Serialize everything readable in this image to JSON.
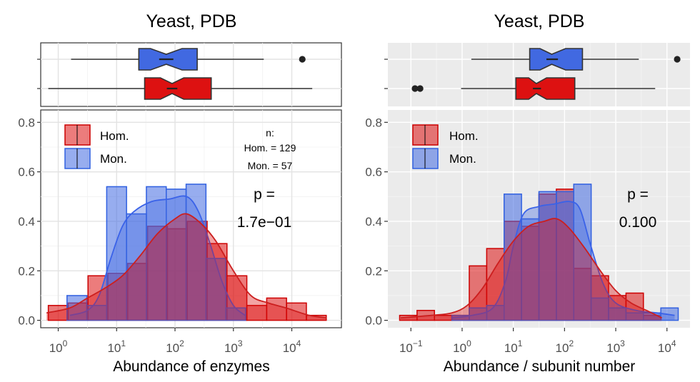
{
  "colors": {
    "hom": "#dd1111",
    "hom_edge": "#cc0000",
    "hom_curve": "#cc1f1f",
    "mon": "#4169e1",
    "mon_edge": "#3060e0",
    "mon_curve": "#3a62e8",
    "panel_bg_left": "#ffffff",
    "panel_bg_right": "#ebebeb",
    "grid_left": "#e3e3e3",
    "grid_right": "#ffffff",
    "axis_text": "#4d4d4d"
  },
  "chart_data": [
    {
      "type": "histogram",
      "title": "Yeast,  PDB",
      "xlabel": "Abundance of enzymes",
      "ylabel": "",
      "x_scale": "log10",
      "xlim": [
        -0.3,
        4.85
      ],
      "x_ticks": [
        {
          "exp": 0,
          "label_base": "10",
          "label_exp": "0"
        },
        {
          "exp": 1,
          "label_base": "10",
          "label_exp": "1"
        },
        {
          "exp": 2,
          "label_base": "10",
          "label_exp": "2"
        },
        {
          "exp": 3,
          "label_base": "10",
          "label_exp": "3"
        },
        {
          "exp": 4,
          "label_base": "10",
          "label_exp": "4"
        }
      ],
      "ylim": [
        -0.03,
        0.85
      ],
      "y_ticks": [
        {
          "v": 0,
          "label": "0.0"
        },
        {
          "v": 0.2,
          "label": "0.2"
        },
        {
          "v": 0.4,
          "label": "0.4"
        },
        {
          "v": 0.6,
          "label": "0.6"
        },
        {
          "v": 0.8,
          "label": "0.8"
        }
      ],
      "legend": {
        "position": "top-left",
        "labels": [
          "Hom.",
          "Mon."
        ]
      },
      "counts": {
        "title": "n:",
        "lines": [
          "Hom. = 129",
          "Mon. = 57"
        ]
      },
      "pvalue": {
        "label": "p =",
        "value": "1.7e−01"
      },
      "hom_bars": [
        {
          "x0": -0.17,
          "x1": 0.17,
          "y": 0.06
        },
        {
          "x0": 0.17,
          "x1": 0.51,
          "y": 0.07
        },
        {
          "x0": 0.51,
          "x1": 0.85,
          "y": 0.18
        },
        {
          "x0": 0.85,
          "x1": 1.19,
          "y": 0.19
        },
        {
          "x0": 1.19,
          "x1": 1.53,
          "y": 0.23
        },
        {
          "x0": 1.53,
          "x1": 1.87,
          "y": 0.38
        },
        {
          "x0": 1.87,
          "x1": 2.21,
          "y": 0.37
        },
        {
          "x0": 2.21,
          "x1": 2.55,
          "y": 0.4
        },
        {
          "x0": 2.55,
          "x1": 2.89,
          "y": 0.31
        },
        {
          "x0": 2.89,
          "x1": 3.23,
          "y": 0.18
        },
        {
          "x0": 3.23,
          "x1": 3.57,
          "y": 0.06
        },
        {
          "x0": 3.57,
          "x1": 3.91,
          "y": 0.09
        },
        {
          "x0": 3.91,
          "x1": 4.25,
          "y": 0.07
        },
        {
          "x0": 4.25,
          "x1": 4.59,
          "y": 0.02
        }
      ],
      "mon_bars": [
        {
          "x0": 0.15,
          "x1": 0.49,
          "y": 0.1
        },
        {
          "x0": 0.49,
          "x1": 0.83,
          "y": 0.06
        },
        {
          "x0": 0.83,
          "x1": 1.17,
          "y": 0.54
        },
        {
          "x0": 1.17,
          "x1": 1.51,
          "y": 0.43
        },
        {
          "x0": 1.51,
          "x1": 1.85,
          "y": 0.54
        },
        {
          "x0": 1.85,
          "x1": 2.19,
          "y": 0.53
        },
        {
          "x0": 2.19,
          "x1": 2.53,
          "y": 0.55
        },
        {
          "x0": 2.53,
          "x1": 2.87,
          "y": 0.25
        },
        {
          "x0": 2.87,
          "x1": 3.21,
          "y": 0.05
        }
      ],
      "hom_density": [
        [
          -0.2,
          0.03
        ],
        [
          0.2,
          0.05
        ],
        [
          0.5,
          0.09
        ],
        [
          0.8,
          0.13
        ],
        [
          1.1,
          0.18
        ],
        [
          1.4,
          0.26
        ],
        [
          1.7,
          0.35
        ],
        [
          2.0,
          0.41
        ],
        [
          2.2,
          0.43
        ],
        [
          2.45,
          0.39
        ],
        [
          2.7,
          0.32
        ],
        [
          3.0,
          0.2
        ],
        [
          3.3,
          0.1
        ],
        [
          3.6,
          0.07
        ],
        [
          3.9,
          0.05
        ],
        [
          4.3,
          0.02
        ],
        [
          4.6,
          0.01
        ]
      ],
      "mon_density": [
        [
          0.2,
          0.02
        ],
        [
          0.5,
          0.04
        ],
        [
          0.7,
          0.1
        ],
        [
          0.9,
          0.25
        ],
        [
          1.1,
          0.38
        ],
        [
          1.3,
          0.44
        ],
        [
          1.6,
          0.48
        ],
        [
          1.9,
          0.49
        ],
        [
          2.2,
          0.5
        ],
        [
          2.4,
          0.44
        ],
        [
          2.6,
          0.31
        ],
        [
          2.8,
          0.16
        ],
        [
          3.0,
          0.06
        ],
        [
          3.2,
          0.02
        ]
      ],
      "boxes": {
        "mon": {
          "whisker_lo": 0.22,
          "q1": 1.38,
          "median": 1.85,
          "q3": 2.38,
          "whisker_hi": 3.52,
          "notch_lo": 1.58,
          "notch_hi": 2.12,
          "outliers": [
            4.18
          ]
        },
        "hom": {
          "whisker_lo": -0.17,
          "q1": 1.48,
          "median": 1.95,
          "q3": 2.62,
          "whisker_hi": 4.35,
          "notch_lo": 1.75,
          "notch_hi": 2.15,
          "outliers": []
        }
      }
    },
    {
      "type": "histogram",
      "title": "Yeast,  PDB",
      "xlabel": "Abundance / subunit number",
      "ylabel": "",
      "x_scale": "log10",
      "xlim": [
        -1.45,
        4.45
      ],
      "x_ticks": [
        {
          "exp": -1,
          "label_base": "10",
          "label_exp": "−1"
        },
        {
          "exp": 0,
          "label_base": "10",
          "label_exp": "0"
        },
        {
          "exp": 1,
          "label_base": "10",
          "label_exp": "1"
        },
        {
          "exp": 2,
          "label_base": "10",
          "label_exp": "2"
        },
        {
          "exp": 3,
          "label_base": "10",
          "label_exp": "3"
        },
        {
          "exp": 4,
          "label_base": "10",
          "label_exp": "4"
        }
      ],
      "ylim": [
        -0.03,
        0.85
      ],
      "y_ticks": [
        {
          "v": 0,
          "label": "0.0"
        },
        {
          "v": 0.2,
          "label": "0.2"
        },
        {
          "v": 0.4,
          "label": "0.4"
        },
        {
          "v": 0.6,
          "label": "0.6"
        },
        {
          "v": 0.8,
          "label": "0.8"
        }
      ],
      "legend": {
        "position": "top-left",
        "labels": [
          "Hom.",
          "Mon."
        ]
      },
      "pvalue": {
        "label": "p =",
        "value": "0.100"
      },
      "hom_bars": [
        {
          "x0": -1.22,
          "x1": -0.88,
          "y": 0.02
        },
        {
          "x0": -0.88,
          "x1": -0.54,
          "y": 0.04
        },
        {
          "x0": -0.54,
          "x1": -0.2,
          "y": 0.02
        },
        {
          "x0": -0.2,
          "x1": 0.14,
          "y": 0.02
        },
        {
          "x0": 0.14,
          "x1": 0.48,
          "y": 0.22
        },
        {
          "x0": 0.48,
          "x1": 0.82,
          "y": 0.29
        },
        {
          "x0": 0.82,
          "x1": 1.16,
          "y": 0.4
        },
        {
          "x0": 1.16,
          "x1": 1.5,
          "y": 0.38
        },
        {
          "x0": 1.5,
          "x1": 1.84,
          "y": 0.51
        },
        {
          "x0": 1.84,
          "x1": 2.18,
          "y": 0.53
        },
        {
          "x0": 2.18,
          "x1": 2.52,
          "y": 0.21
        },
        {
          "x0": 2.52,
          "x1": 2.86,
          "y": 0.18
        },
        {
          "x0": 2.86,
          "x1": 3.2,
          "y": 0.1
        },
        {
          "x0": 3.2,
          "x1": 3.54,
          "y": 0.11
        },
        {
          "x0": 3.54,
          "x1": 3.88,
          "y": 0.02
        }
      ],
      "mon_bars": [
        {
          "x0": -0.2,
          "x1": 0.14,
          "y": 0.02
        },
        {
          "x0": 0.14,
          "x1": 0.48,
          "y": 0.05
        },
        {
          "x0": 0.48,
          "x1": 0.82,
          "y": 0.06
        },
        {
          "x0": 0.82,
          "x1": 1.16,
          "y": 0.51
        },
        {
          "x0": 1.16,
          "x1": 1.5,
          "y": 0.41
        },
        {
          "x0": 1.5,
          "x1": 1.84,
          "y": 0.52
        },
        {
          "x0": 1.84,
          "x1": 2.18,
          "y": 0.52
        },
        {
          "x0": 2.18,
          "x1": 2.52,
          "y": 0.55
        },
        {
          "x0": 2.52,
          "x1": 2.86,
          "y": 0.09
        },
        {
          "x0": 2.86,
          "x1": 3.2,
          "y": 0.05
        },
        {
          "x0": 3.2,
          "x1": 3.54,
          "y": 0.03
        },
        {
          "x0": 3.54,
          "x1": 3.88,
          "y": 0.03
        },
        {
          "x0": 3.88,
          "x1": 4.22,
          "y": 0.05
        }
      ],
      "hom_density": [
        [
          -1.2,
          0.01
        ],
        [
          -0.6,
          0.02
        ],
        [
          -0.2,
          0.03
        ],
        [
          0.1,
          0.06
        ],
        [
          0.4,
          0.13
        ],
        [
          0.7,
          0.23
        ],
        [
          1.0,
          0.32
        ],
        [
          1.3,
          0.38
        ],
        [
          1.6,
          0.4
        ],
        [
          1.85,
          0.41
        ],
        [
          2.1,
          0.37
        ],
        [
          2.4,
          0.29
        ],
        [
          2.7,
          0.2
        ],
        [
          3.0,
          0.12
        ],
        [
          3.3,
          0.07
        ],
        [
          3.6,
          0.04
        ],
        [
          3.9,
          0.01
        ]
      ],
      "mon_density": [
        [
          -0.2,
          0.01
        ],
        [
          0.2,
          0.02
        ],
        [
          0.6,
          0.05
        ],
        [
          0.85,
          0.16
        ],
        [
          1.0,
          0.3
        ],
        [
          1.2,
          0.43
        ],
        [
          1.5,
          0.46
        ],
        [
          1.8,
          0.47
        ],
        [
          2.1,
          0.48
        ],
        [
          2.3,
          0.45
        ],
        [
          2.5,
          0.31
        ],
        [
          2.75,
          0.15
        ],
        [
          3.0,
          0.07
        ],
        [
          3.4,
          0.04
        ],
        [
          3.8,
          0.03
        ],
        [
          4.15,
          0.02
        ]
      ],
      "boxes": {
        "mon": {
          "whisker_lo": 0.18,
          "q1": 1.32,
          "median": 1.75,
          "q3": 2.35,
          "whisker_hi": 3.45,
          "notch_lo": 1.52,
          "notch_hi": 2.02,
          "outliers": [
            4.2
          ]
        },
        "hom": {
          "whisker_lo": -0.02,
          "q1": 1.05,
          "median": 1.45,
          "q3": 2.2,
          "whisker_hi": 3.77,
          "notch_lo": 1.3,
          "notch_hi": 1.65,
          "outliers": [
            -0.92,
            -0.82
          ]
        }
      }
    }
  ]
}
